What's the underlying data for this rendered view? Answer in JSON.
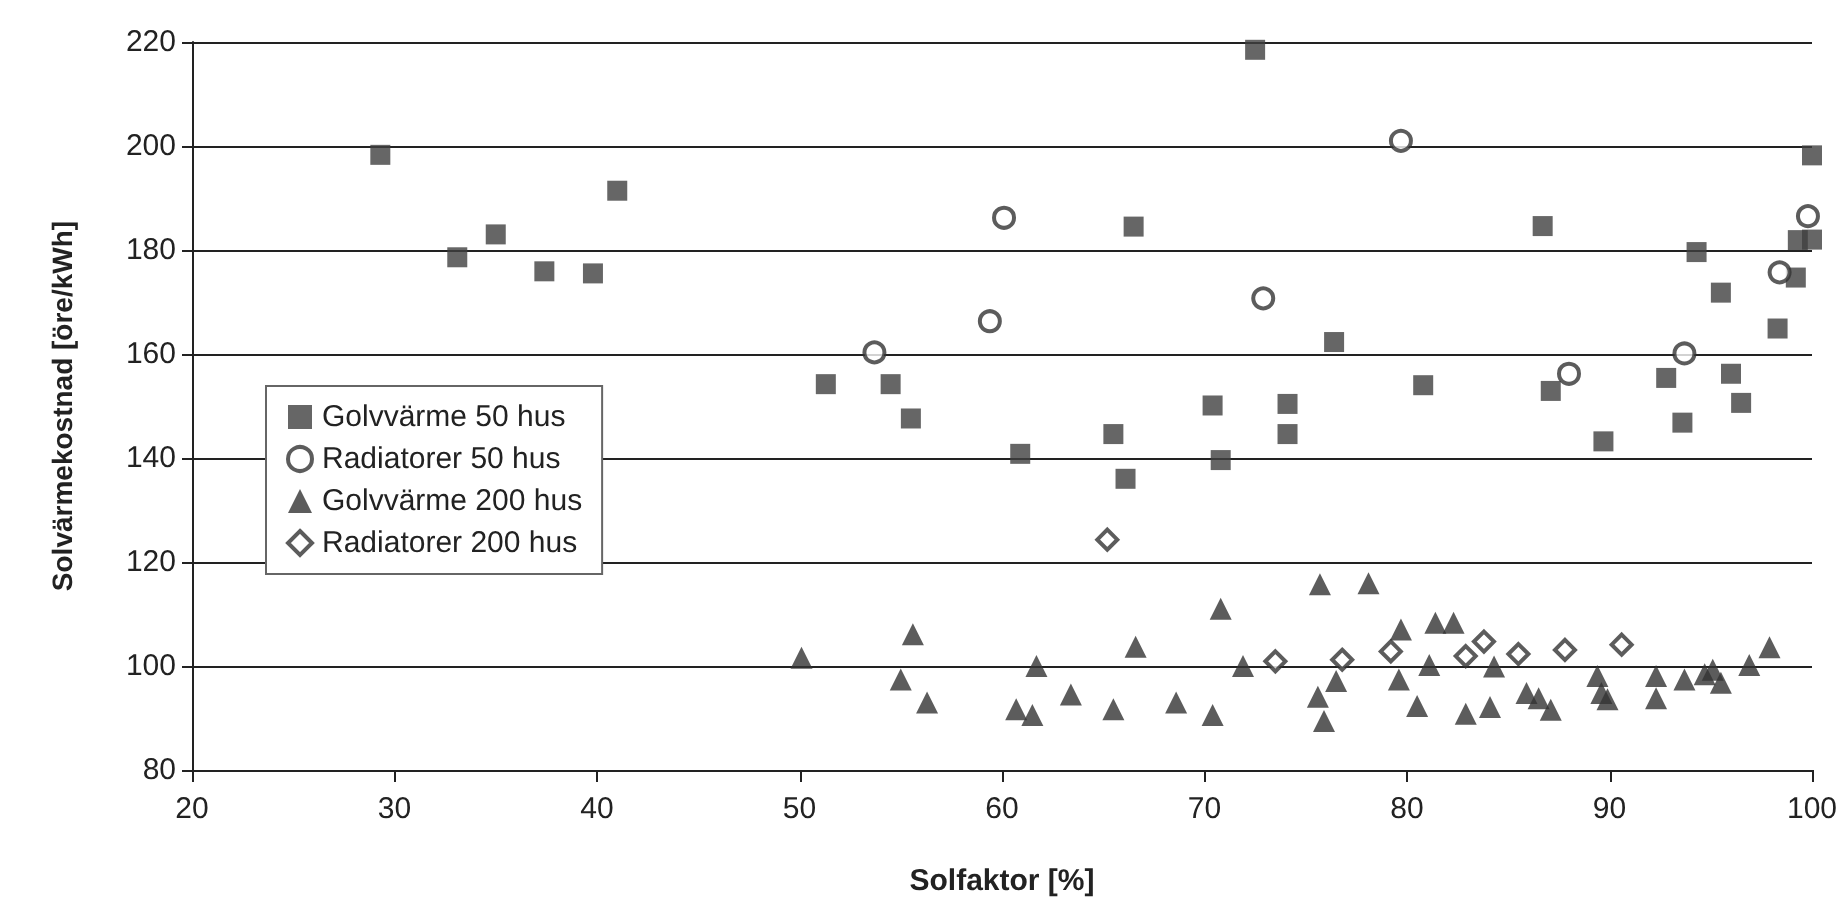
{
  "chart_data": {
    "type": "scatter",
    "xlabel": "Solfaktor [%]",
    "ylabel": "Solvärmekostnad [öre/kWh]",
    "xlim": [
      20,
      100
    ],
    "xticks": [
      20,
      30,
      40,
      50,
      60,
      70,
      80,
      90,
      100
    ],
    "ylim": [
      80,
      220
    ],
    "yticks": [
      80,
      100,
      120,
      140,
      160,
      180,
      200,
      220
    ],
    "grid": "y",
    "legend": "left",
    "series": [
      {
        "name": "Golvvärme 50 hus",
        "color": "#404040",
        "marker": "square",
        "x": [
          29.3,
          33.1,
          35.0,
          37.4,
          39.8,
          41.0,
          72.5,
          66.5,
          76.4,
          51.3,
          54.5,
          55.5,
          70.4,
          74.1,
          60.9,
          65.5,
          66.1,
          70.8,
          74.1,
          100,
          86.7,
          99.3,
          100,
          94.3,
          99.2,
          95.5,
          98.3,
          80.8,
          87.1,
          92.8,
          96.0,
          96.5,
          93.6,
          89.7
        ],
        "values": [
          198.3,
          178.6,
          183,
          175.9,
          175.5,
          191.4,
          218.5,
          184.5,
          162.3,
          154.2,
          154.2,
          147.6,
          150.1,
          150.4,
          140.8,
          144.6,
          136,
          139.6,
          144.6,
          198.2,
          184.6,
          181.9,
          182,
          179.6,
          174.7,
          171.8,
          164.9,
          154,
          152.9,
          155.4,
          156.2,
          150.6,
          146.8,
          143.2
        ]
      },
      {
        "name": "Radiatorer 50 hus",
        "color": "#333333",
        "marker": "circle",
        "x": [
          53.7,
          59.4,
          60.1,
          72.9,
          79.7,
          88.0,
          93.7,
          98.4,
          99.8
        ],
        "values": [
          160.3,
          166.3,
          186.2,
          170.7,
          201,
          156.2,
          160.1,
          175.7,
          186.5
        ]
      },
      {
        "name": "Golvvärme 200 hus",
        "color": "#333333",
        "marker": "triangle",
        "x": [
          50.1,
          55.6,
          55.0,
          56.3,
          61.7,
          60.7,
          61.5,
          63.4,
          65.5,
          66.6,
          68.6,
          70.4,
          70.8,
          71.9,
          75.7,
          76.5,
          75.6,
          75.9,
          78.1,
          79.7,
          79.6,
          80.5,
          81.1,
          81.4,
          82.3,
          84.3,
          82.9,
          84.1,
          85.9,
          86.5,
          87.1,
          89.4,
          89.6,
          89.9,
          92.3,
          92.3,
          93.7,
          94.7,
          95.1,
          95.5,
          96.9,
          97.9
        ],
        "values": [
          101.6,
          106.1,
          97.4,
          93,
          100,
          91.7,
          90.6,
          94.5,
          91.7,
          103.7,
          93,
          90.6,
          111,
          100,
          115.7,
          97.1,
          94.1,
          89.4,
          115.9,
          107,
          97.4,
          92.3,
          100.2,
          108.3,
          108.3,
          99.9,
          90.8,
          92.1,
          94.8,
          93.8,
          91.6,
          98.1,
          94.8,
          93.6,
          98.1,
          93.8,
          97.4,
          98.4,
          99.3,
          96.8,
          100.2,
          103.6
        ]
      },
      {
        "name": "Radiatorer 200 hus",
        "color": "#333333",
        "marker": "diamond",
        "x": [
          65.2,
          73.5,
          76.8,
          79.2,
          82.9,
          83.8,
          85.5,
          87.8,
          90.6
        ],
        "values": [
          124.3,
          100.9,
          101.2,
          102.8,
          101.9,
          104.7,
          102.3,
          103.1,
          104.1
        ]
      }
    ]
  }
}
